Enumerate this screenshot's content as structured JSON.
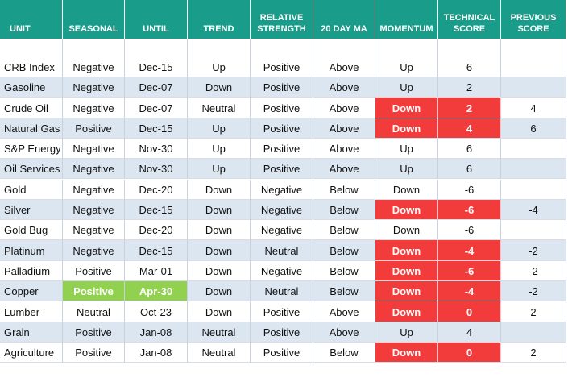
{
  "table": {
    "header": [
      "UNIT",
      "SEASONAL",
      "UNTIL",
      "TREND",
      "RELATIVE STRENGTH",
      "20 DAY MA",
      "MOMENTUM",
      "TECHNICAL SCORE",
      "PREVIOUS SCORE"
    ],
    "rows": [
      [
        "CRB Index",
        "Negative",
        "Dec-15",
        "Up",
        "Positive",
        "Above",
        "Up",
        6,
        null
      ],
      [
        "Gasoline",
        "Negative",
        "Dec-07",
        "Down",
        "Positive",
        "Above",
        "Up",
        2,
        null
      ],
      [
        "Crude Oil",
        "Negative",
        "Dec-07",
        "Neutral",
        "Positive",
        "Above",
        "Down",
        2,
        4
      ],
      [
        "Natural Gas",
        "Positive",
        "Dec-15",
        "Up",
        "Positive",
        "Above",
        "Down",
        4,
        6
      ],
      [
        "S&P Energy",
        "Negative",
        "Nov-30",
        "Up",
        "Positive",
        "Above",
        "Up",
        6,
        null
      ],
      [
        "Oil Services",
        "Negative",
        "Nov-30",
        "Up",
        "Positive",
        "Above",
        "Up",
        6,
        null
      ],
      [
        "Gold",
        "Negative",
        "Dec-20",
        "Down",
        "Negative",
        "Below",
        "Down",
        -6,
        null
      ],
      [
        "Silver",
        "Negative",
        "Dec-15",
        "Down",
        "Negative",
        "Below",
        "Down",
        -6,
        -4
      ],
      [
        "Gold Bug",
        "Negative",
        "Dec-20",
        "Down",
        "Negative",
        "Below",
        "Down",
        -6,
        null
      ],
      [
        "Platinum",
        "Negative",
        "Dec-15",
        "Down",
        "Neutral",
        "Below",
        "Down",
        -4,
        -2
      ],
      [
        "Palladium",
        "Positive",
        "Mar-01",
        "Down",
        "Negative",
        "Below",
        "Down",
        -6,
        -2
      ],
      [
        "Copper",
        "Positive",
        "Apr-30",
        "Down",
        "Neutral",
        "Below",
        "Down",
        -4,
        -2
      ],
      [
        "Lumber",
        "Neutral",
        "Oct-23",
        "Down",
        "Positive",
        "Above",
        "Down",
        0,
        2
      ],
      [
        "Grain",
        "Positive",
        "Jan-08",
        "Neutral",
        "Positive",
        "Above",
        "Up",
        4,
        null
      ],
      [
        "Agriculture",
        "Positive",
        "Jan-08",
        "Neutral",
        "Positive",
        "Below",
        "Down",
        0,
        2
      ]
    ],
    "header_color": "#1a9c8a",
    "stripe_color": "#dce6f1",
    "cell_colors": [
      {
        "row": 2,
        "col": 6,
        "color": "#f23c3c"
      },
      {
        "row": 2,
        "col": 7,
        "color": "#f23c3c"
      },
      {
        "row": 3,
        "col": 6,
        "color": "#f23c3c"
      },
      {
        "row": 3,
        "col": 7,
        "color": "#f23c3c"
      },
      {
        "row": 7,
        "col": 6,
        "color": "#f23c3c"
      },
      {
        "row": 7,
        "col": 7,
        "color": "#f23c3c"
      },
      {
        "row": 9,
        "col": 6,
        "color": "#f23c3c"
      },
      {
        "row": 9,
        "col": 7,
        "color": "#f23c3c"
      },
      {
        "row": 10,
        "col": 6,
        "color": "#f23c3c"
      },
      {
        "row": 10,
        "col": 7,
        "color": "#f23c3c"
      },
      {
        "row": 11,
        "col": 1,
        "color": "#92d050"
      },
      {
        "row": 11,
        "col": 2,
        "color": "#92d050"
      },
      {
        "row": 11,
        "col": 6,
        "color": "#f23c3c"
      },
      {
        "row": 11,
        "col": 7,
        "color": "#f23c3c"
      },
      {
        "row": 12,
        "col": 6,
        "color": "#f23c3c"
      },
      {
        "row": 12,
        "col": 7,
        "color": "#f23c3c"
      },
      {
        "row": 14,
        "col": 6,
        "color": "#f23c3c"
      },
      {
        "row": 14,
        "col": 7,
        "color": "#f23c3c"
      }
    ]
  }
}
